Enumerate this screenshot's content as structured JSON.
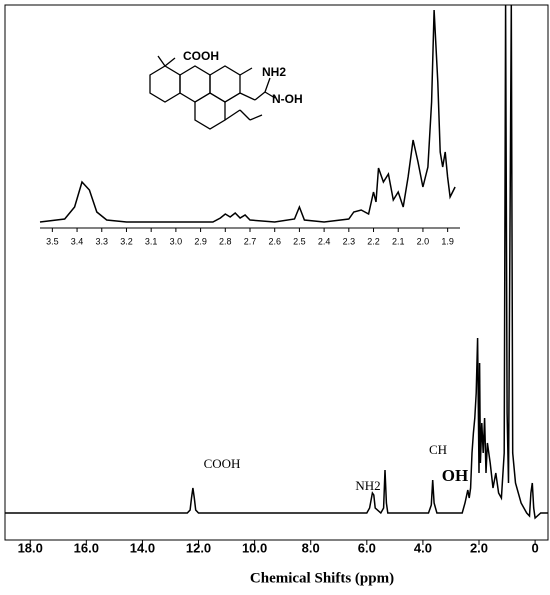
{
  "chart_data": [
    {
      "type": "line",
      "x_label": "Chemical Shifts (ppm)",
      "annotations": [
        "COOH",
        "NH2",
        "CH",
        "OH"
      ],
      "color": "#000000",
      "xlim": [
        18.9,
        -0.46
      ],
      "ylim": [
        -27,
        508
      ],
      "xticks": [
        {
          "value": 18,
          "label": "18.0"
        },
        {
          "value": 16,
          "label": "16.0"
        },
        {
          "value": 14,
          "label": "14.0"
        },
        {
          "value": 12,
          "label": "12.0"
        },
        {
          "value": 10,
          "label": "10.0"
        },
        {
          "value": 8,
          "label": "8.0"
        },
        {
          "value": 6,
          "label": "6.0"
        },
        {
          "value": 4,
          "label": "4.0"
        },
        {
          "value": 2,
          "label": "2.0"
        },
        0
      ],
      "x": [
        18.9,
        12.4,
        12.3,
        12.25,
        12.2,
        12.15,
        12.1,
        12.0,
        6.0,
        5.9,
        5.8,
        5.75,
        5.7,
        5.5,
        5.4,
        5.35,
        5.3,
        5.25,
        3.8,
        3.7,
        3.65,
        3.6,
        3.5,
        2.6,
        2.5,
        2.4,
        2.35,
        2.3,
        2.25,
        2.2,
        2.15,
        2.1,
        2.05,
        2.0,
        1.98,
        1.95,
        1.9,
        1.85,
        1.8,
        1.75,
        1.7,
        1.6,
        1.5,
        1.4,
        1.3,
        1.2,
        1.1,
        1.05,
        1.0,
        0.95,
        0.85,
        0.8,
        0.7,
        0.5,
        0.3,
        0.2,
        0.15,
        0.1,
        0.05,
        0,
        -0.2,
        -0.46
      ],
      "values": [
        0,
        0,
        3,
        15,
        25,
        15,
        3,
        0,
        0,
        5,
        20,
        18,
        5,
        0,
        5,
        43,
        10,
        0,
        0,
        8,
        33,
        10,
        0,
        0,
        10,
        23,
        15,
        25,
        60,
        80,
        95,
        120,
        175,
        40,
        150,
        50,
        90,
        60,
        95,
        40,
        70,
        50,
        25,
        40,
        20,
        15,
        60,
        508,
        100,
        30,
        508,
        60,
        30,
        10,
        0,
        -3,
        20,
        30,
        5,
        -5,
        0,
        0
      ]
    },
    {
      "type": "line",
      "structure_labels": [
        "COOH",
        "NH2",
        "N-OH"
      ],
      "color": "#000000",
      "xlim": [
        3.55,
        1.85
      ],
      "ylim": [
        -6,
        212
      ],
      "xticks": [
        3.5,
        3.4,
        3.3,
        3.2,
        3.1,
        {
          "value": 3,
          "label": "3.0"
        },
        2.9,
        2.8,
        2.7,
        2.6,
        2.5,
        2.4,
        2.3,
        2.2,
        2.1,
        {
          "value": 2,
          "label": "2.0"
        },
        1.9
      ],
      "x": [
        3.55,
        3.45,
        3.41,
        3.38,
        3.35,
        3.32,
        3.28,
        3.2,
        2.85,
        2.82,
        2.8,
        2.78,
        2.76,
        2.74,
        2.72,
        2.7,
        2.6,
        2.52,
        2.5,
        2.48,
        2.4,
        2.3,
        2.28,
        2.25,
        2.22,
        2.2,
        2.19,
        2.18,
        2.16,
        2.14,
        2.12,
        2.1,
        2.08,
        2.06,
        2.04,
        2.02,
        2.0,
        1.98,
        1.965,
        1.955,
        1.94,
        1.93,
        1.92,
        1.91,
        1.9,
        1.89,
        1.88,
        1.87
      ],
      "values": [
        0,
        3,
        15,
        40,
        32,
        10,
        2,
        0,
        0,
        4,
        8,
        5,
        9,
        4,
        7,
        2,
        0,
        3,
        15,
        2,
        0,
        3,
        10,
        12,
        8,
        30,
        20,
        54,
        40,
        48,
        22,
        30,
        15,
        45,
        82,
        60,
        35,
        55,
        120,
        212,
        140,
        70,
        55,
        70,
        45,
        25,
        30,
        35
      ]
    }
  ]
}
